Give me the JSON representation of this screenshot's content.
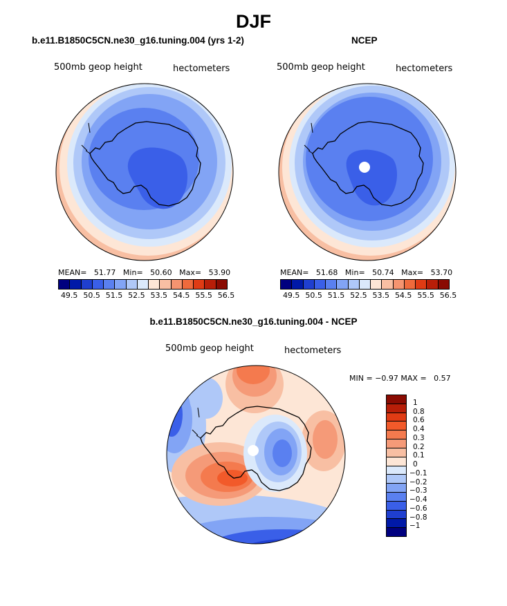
{
  "figure_title": "DJF",
  "panels": {
    "model": {
      "title": "b.e11.B1850C5CN.ne30_g16.tuning.004 (yrs 1-2)",
      "variable": "500mb geop height",
      "units": "hectometers",
      "mean_label": "MEAN=",
      "mean": "51.77",
      "min_label": "Min=",
      "min": "50.60",
      "max_label": "Max=",
      "max": "53.90"
    },
    "obs": {
      "title": "NCEP",
      "variable": "500mb geop height",
      "units": "hectometers",
      "mean_label": "MEAN=",
      "mean": "51.68",
      "min_label": "Min=",
      "min": "50.74",
      "max_label": "Max=",
      "max": "53.70"
    },
    "diff": {
      "title": "b.e11.B1850C5CN.ne30_g16.tuning.004 - NCEP",
      "variable": "500mb geop height",
      "units": "hectometers",
      "min_label": "MIN =",
      "min": "−0.97",
      "max_label": "MAX =",
      "max": "0.57"
    }
  },
  "colorbar_abs": {
    "ticks": [
      "49.5",
      "50.5",
      "51.5",
      "52.5",
      "53.5",
      "54.5",
      "55.5",
      "56.5"
    ],
    "colors": [
      "#00007f",
      "#0019a8",
      "#1f3fd0",
      "#3a5fe8",
      "#5a80f0",
      "#82a4f5",
      "#afc8f8",
      "#dbe9fb",
      "#fde6d6",
      "#f8bfa3",
      "#f59470",
      "#ef6a3c",
      "#e03b14",
      "#b81e08",
      "#8a0b02"
    ]
  },
  "colorbar_diff": {
    "ticks": [
      "1",
      "0.8",
      "0.6",
      "0.4",
      "0.3",
      "0.2",
      "0.1",
      "0",
      "−0.1",
      "−0.2",
      "−0.3",
      "−0.4",
      "−0.6",
      "−0.8",
      "−1"
    ],
    "colors": [
      "#8a0b02",
      "#b81e08",
      "#e03b14",
      "#f25a2a",
      "#f47a4e",
      "#f59a78",
      "#f8bfa3",
      "#fde6d6",
      "#dbe9fb",
      "#afc8f8",
      "#82a4f5",
      "#5a80f0",
      "#3a5fe8",
      "#1f3fd0",
      "#0019a8",
      "#00007f"
    ]
  },
  "colors": {
    "coast": "#000000",
    "outer": "#f8bfa3",
    "ring_light": "#afc8f8",
    "ring_mid": "#82a4f5",
    "core": "#5a80f0",
    "deep": "#3a5fe8"
  }
}
